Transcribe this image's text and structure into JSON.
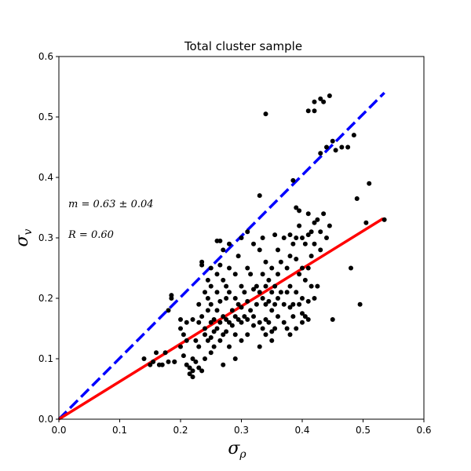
{
  "chart_data": {
    "type": "scatter",
    "title": "Total cluster sample",
    "xlabel": "σ",
    "xlabel_sub": "ρ",
    "ylabel": "σ",
    "ylabel_sub": "v",
    "xlim": [
      0,
      0.6
    ],
    "ylim": [
      0,
      0.6
    ],
    "xticks": [
      "0.0",
      "0.1",
      "0.2",
      "0.3",
      "0.4",
      "0.5",
      "0.6"
    ],
    "yticks": [
      "0.0",
      "0.1",
      "0.2",
      "0.3",
      "0.4",
      "0.5",
      "0.6"
    ],
    "grid": false,
    "annotations": [
      "m = 0.63 ± 0.04",
      "R = 0.60"
    ],
    "colors": {
      "points": "#000000",
      "fit_line": "#ff0000",
      "one_to_one": "#0000ff"
    },
    "lines": [
      {
        "style": "dashed",
        "color": "#0000ff",
        "x": [
          0,
          0.535
        ],
        "y": [
          0,
          0.54
        ]
      },
      {
        "style": "solid",
        "color": "#ff0000",
        "x": [
          0,
          0.533
        ],
        "y": [
          0,
          0.332
        ]
      }
    ],
    "points": [
      [
        0.14,
        0.1
      ],
      [
        0.15,
        0.09
      ],
      [
        0.155,
        0.095
      ],
      [
        0.16,
        0.11
      ],
      [
        0.165,
        0.09
      ],
      [
        0.17,
        0.09
      ],
      [
        0.175,
        0.11
      ],
      [
        0.18,
        0.095
      ],
      [
        0.18,
        0.18
      ],
      [
        0.185,
        0.2
      ],
      [
        0.185,
        0.205
      ],
      [
        0.19,
        0.095
      ],
      [
        0.19,
        0.095
      ],
      [
        0.2,
        0.165
      ],
      [
        0.2,
        0.15
      ],
      [
        0.2,
        0.12
      ],
      [
        0.205,
        0.14
      ],
      [
        0.205,
        0.105
      ],
      [
        0.21,
        0.13
      ],
      [
        0.21,
        0.16
      ],
      [
        0.21,
        0.09
      ],
      [
        0.215,
        0.085
      ],
      [
        0.215,
        0.075
      ],
      [
        0.22,
        0.165
      ],
      [
        0.22,
        0.1
      ],
      [
        0.22,
        0.08
      ],
      [
        0.22,
        0.07
      ],
      [
        0.225,
        0.13
      ],
      [
        0.225,
        0.095
      ],
      [
        0.23,
        0.19
      ],
      [
        0.23,
        0.16
      ],
      [
        0.23,
        0.12
      ],
      [
        0.23,
        0.085
      ],
      [
        0.235,
        0.26
      ],
      [
        0.235,
        0.255
      ],
      [
        0.235,
        0.17
      ],
      [
        0.235,
        0.08
      ],
      [
        0.24,
        0.21
      ],
      [
        0.24,
        0.15
      ],
      [
        0.24,
        0.14
      ],
      [
        0.24,
        0.1
      ],
      [
        0.245,
        0.23
      ],
      [
        0.245,
        0.2
      ],
      [
        0.245,
        0.18
      ],
      [
        0.245,
        0.13
      ],
      [
        0.25,
        0.25
      ],
      [
        0.25,
        0.22
      ],
      [
        0.25,
        0.19
      ],
      [
        0.25,
        0.16
      ],
      [
        0.25,
        0.135
      ],
      [
        0.25,
        0.11
      ],
      [
        0.255,
        0.165
      ],
      [
        0.255,
        0.145
      ],
      [
        0.255,
        0.12
      ],
      [
        0.26,
        0.295
      ],
      [
        0.26,
        0.24
      ],
      [
        0.26,
        0.21
      ],
      [
        0.26,
        0.18
      ],
      [
        0.26,
        0.15
      ],
      [
        0.265,
        0.295
      ],
      [
        0.265,
        0.255
      ],
      [
        0.265,
        0.195
      ],
      [
        0.265,
        0.16
      ],
      [
        0.265,
        0.13
      ],
      [
        0.27,
        0.28
      ],
      [
        0.27,
        0.23
      ],
      [
        0.27,
        0.17
      ],
      [
        0.27,
        0.14
      ],
      [
        0.27,
        0.09
      ],
      [
        0.275,
        0.22
      ],
      [
        0.275,
        0.2
      ],
      [
        0.275,
        0.165
      ],
      [
        0.275,
        0.145
      ],
      [
        0.28,
        0.29
      ],
      [
        0.28,
        0.25
      ],
      [
        0.28,
        0.21
      ],
      [
        0.28,
        0.16
      ],
      [
        0.28,
        0.12
      ],
      [
        0.285,
        0.18
      ],
      [
        0.285,
        0.155
      ],
      [
        0.29,
        0.24
      ],
      [
        0.29,
        0.2
      ],
      [
        0.29,
        0.17
      ],
      [
        0.29,
        0.14
      ],
      [
        0.29,
        0.1
      ],
      [
        0.295,
        0.27
      ],
      [
        0.295,
        0.19
      ],
      [
        0.295,
        0.165
      ],
      [
        0.3,
        0.3
      ],
      [
        0.3,
        0.22
      ],
      [
        0.3,
        0.185
      ],
      [
        0.3,
        0.16
      ],
      [
        0.3,
        0.13
      ],
      [
        0.305,
        0.21
      ],
      [
        0.305,
        0.17
      ],
      [
        0.31,
        0.31
      ],
      [
        0.31,
        0.25
      ],
      [
        0.31,
        0.195
      ],
      [
        0.31,
        0.165
      ],
      [
        0.31,
        0.14
      ],
      [
        0.315,
        0.24
      ],
      [
        0.315,
        0.18
      ],
      [
        0.32,
        0.29
      ],
      [
        0.32,
        0.215
      ],
      [
        0.32,
        0.17
      ],
      [
        0.32,
        0.155
      ],
      [
        0.325,
        0.22
      ],
      [
        0.325,
        0.19
      ],
      [
        0.33,
        0.37
      ],
      [
        0.33,
        0.28
      ],
      [
        0.33,
        0.21
      ],
      [
        0.33,
        0.16
      ],
      [
        0.33,
        0.12
      ],
      [
        0.335,
        0.3
      ],
      [
        0.335,
        0.24
      ],
      [
        0.335,
        0.2
      ],
      [
        0.335,
        0.15
      ],
      [
        0.34,
        0.505
      ],
      [
        0.34,
        0.26
      ],
      [
        0.34,
        0.22
      ],
      [
        0.34,
        0.19
      ],
      [
        0.34,
        0.165
      ],
      [
        0.34,
        0.14
      ],
      [
        0.345,
        0.23
      ],
      [
        0.345,
        0.195
      ],
      [
        0.345,
        0.16
      ],
      [
        0.35,
        0.25
      ],
      [
        0.35,
        0.21
      ],
      [
        0.35,
        0.18
      ],
      [
        0.35,
        0.145
      ],
      [
        0.35,
        0.13
      ],
      [
        0.355,
        0.305
      ],
      [
        0.355,
        0.22
      ],
      [
        0.355,
        0.19
      ],
      [
        0.355,
        0.15
      ],
      [
        0.36,
        0.28
      ],
      [
        0.36,
        0.24
      ],
      [
        0.36,
        0.2
      ],
      [
        0.36,
        0.17
      ],
      [
        0.365,
        0.26
      ],
      [
        0.365,
        0.21
      ],
      [
        0.37,
        0.3
      ],
      [
        0.37,
        0.19
      ],
      [
        0.37,
        0.16
      ],
      [
        0.375,
        0.25
      ],
      [
        0.375,
        0.21
      ],
      [
        0.375,
        0.15
      ],
      [
        0.38,
        0.305
      ],
      [
        0.38,
        0.27
      ],
      [
        0.38,
        0.22
      ],
      [
        0.38,
        0.185
      ],
      [
        0.38,
        0.14
      ],
      [
        0.385,
        0.395
      ],
      [
        0.385,
        0.29
      ],
      [
        0.385,
        0.19
      ],
      [
        0.385,
        0.17
      ],
      [
        0.39,
        0.35
      ],
      [
        0.39,
        0.3
      ],
      [
        0.39,
        0.265
      ],
      [
        0.39,
        0.21
      ],
      [
        0.39,
        0.15
      ],
      [
        0.395,
        0.345
      ],
      [
        0.395,
        0.32
      ],
      [
        0.395,
        0.24
      ],
      [
        0.395,
        0.19
      ],
      [
        0.4,
        0.3
      ],
      [
        0.4,
        0.25
      ],
      [
        0.4,
        0.2
      ],
      [
        0.4,
        0.175
      ],
      [
        0.4,
        0.16
      ],
      [
        0.405,
        0.29
      ],
      [
        0.405,
        0.23
      ],
      [
        0.405,
        0.17
      ],
      [
        0.41,
        0.51
      ],
      [
        0.41,
        0.34
      ],
      [
        0.41,
        0.305
      ],
      [
        0.41,
        0.25
      ],
      [
        0.41,
        0.195
      ],
      [
        0.41,
        0.165
      ],
      [
        0.415,
        0.31
      ],
      [
        0.415,
        0.27
      ],
      [
        0.415,
        0.22
      ],
      [
        0.42,
        0.525
      ],
      [
        0.42,
        0.51
      ],
      [
        0.42,
        0.325
      ],
      [
        0.42,
        0.29
      ],
      [
        0.42,
        0.2
      ],
      [
        0.425,
        0.33
      ],
      [
        0.425,
        0.22
      ],
      [
        0.43,
        0.53
      ],
      [
        0.43,
        0.44
      ],
      [
        0.43,
        0.31
      ],
      [
        0.43,
        0.28
      ],
      [
        0.435,
        0.525
      ],
      [
        0.435,
        0.34
      ],
      [
        0.44,
        0.3
      ],
      [
        0.44,
        0.45
      ],
      [
        0.445,
        0.535
      ],
      [
        0.445,
        0.32
      ],
      [
        0.45,
        0.46
      ],
      [
        0.45,
        0.165
      ],
      [
        0.455,
        0.445
      ],
      [
        0.465,
        0.45
      ],
      [
        0.475,
        0.45
      ],
      [
        0.48,
        0.25
      ],
      [
        0.485,
        0.47
      ],
      [
        0.49,
        0.365
      ],
      [
        0.495,
        0.19
      ],
      [
        0.505,
        0.325
      ],
      [
        0.51,
        0.39
      ],
      [
        0.535,
        0.33
      ]
    ]
  }
}
